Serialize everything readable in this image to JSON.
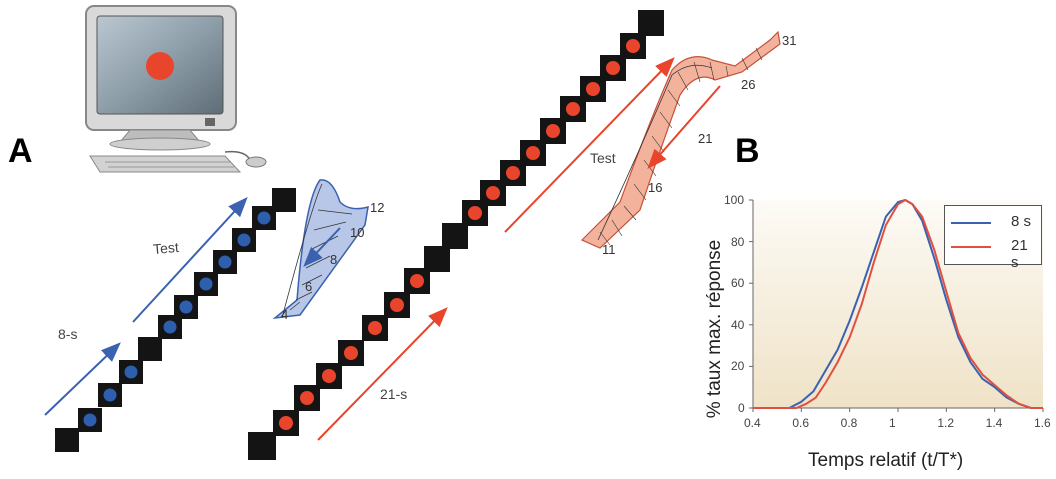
{
  "panels": {
    "a": "A",
    "b": "B"
  },
  "left_diagram": {
    "test_label": "Test",
    "train_label": "8-s",
    "stimulus_color": "#2e5fae",
    "profile_ticks": [
      "4",
      "6",
      "8",
      "10",
      "12"
    ]
  },
  "right_diagram": {
    "test_label": "Test",
    "train_label": "21-s",
    "stimulus_color": "#e8452c",
    "profile_ticks": [
      "11",
      "16",
      "21",
      "26",
      "31"
    ]
  },
  "chart_data": {
    "type": "line",
    "xlabel": "Temps relatif (t/T*)",
    "ylabel": "% taux max. réponse",
    "xlim": [
      0.4,
      1.6
    ],
    "ylim": [
      0,
      100
    ],
    "x_ticks": [
      "0.4",
      "0.6",
      "0.8",
      "1",
      "1.2",
      "1.4",
      "1.6"
    ],
    "y_ticks": [
      "0",
      "20",
      "40",
      "60",
      "80",
      "100"
    ],
    "legend_position": "top-right",
    "series": [
      {
        "name": "8 s",
        "color": "#3a62b0",
        "x": [
          0.4,
          0.55,
          0.6,
          0.65,
          0.7,
          0.75,
          0.8,
          0.85,
          0.9,
          0.95,
          1.0,
          1.03,
          1.06,
          1.1,
          1.15,
          1.2,
          1.25,
          1.3,
          1.35,
          1.4,
          1.45,
          1.5,
          1.55,
          1.6
        ],
        "y": [
          0,
          0,
          3,
          8,
          18,
          28,
          42,
          58,
          75,
          92,
          99,
          100,
          98,
          90,
          72,
          52,
          34,
          22,
          14,
          10,
          5,
          2,
          0,
          0
        ]
      },
      {
        "name": "21 s",
        "color": "#e05040",
        "x": [
          0.4,
          0.58,
          0.62,
          0.66,
          0.7,
          0.75,
          0.8,
          0.85,
          0.9,
          0.95,
          1.0,
          1.03,
          1.06,
          1.1,
          1.15,
          1.2,
          1.25,
          1.3,
          1.35,
          1.4,
          1.45,
          1.5,
          1.55,
          1.6
        ],
        "y": [
          0,
          0,
          2,
          5,
          12,
          22,
          34,
          50,
          70,
          88,
          98,
          100,
          98,
          92,
          76,
          56,
          36,
          24,
          16,
          11,
          6,
          2,
          0,
          0
        ]
      }
    ]
  }
}
